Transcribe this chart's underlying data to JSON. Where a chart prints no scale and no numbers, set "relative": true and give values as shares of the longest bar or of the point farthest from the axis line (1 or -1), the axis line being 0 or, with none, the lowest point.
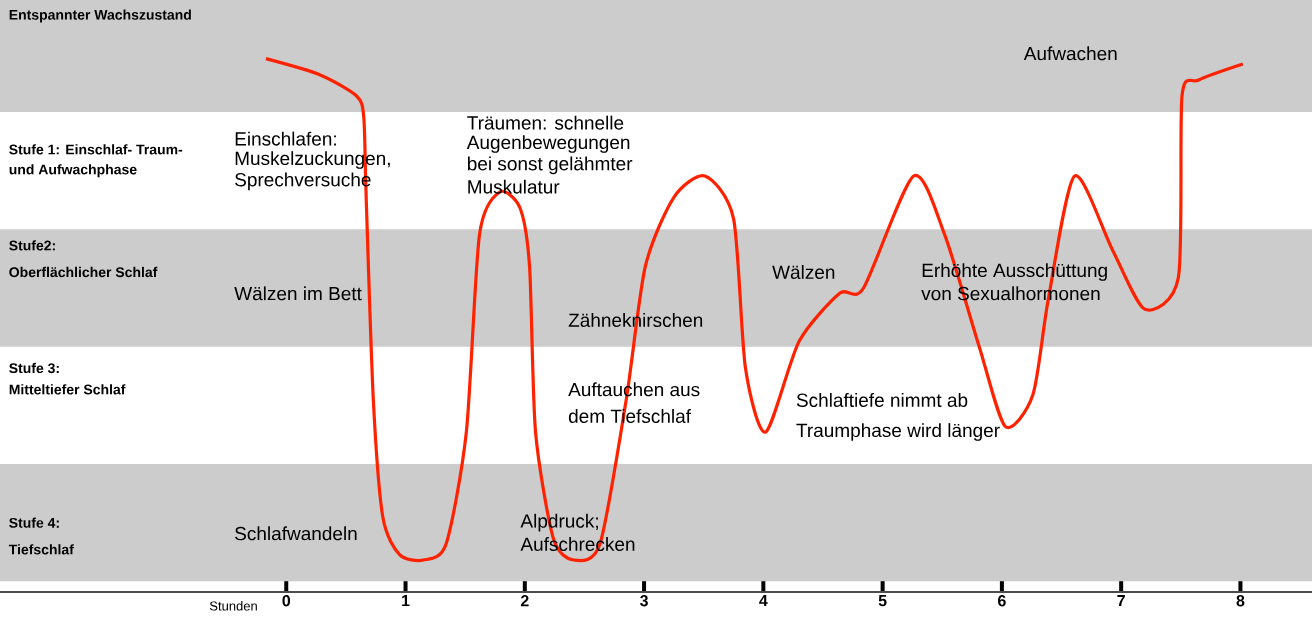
{
  "chart_data": {
    "type": "line",
    "relative": true,
    "xlabel": "Stunden",
    "xlim": [
      -2.4,
      8.6
    ],
    "xticks": [
      0,
      1,
      2,
      3,
      4,
      5,
      6,
      7,
      8
    ],
    "bands": [
      {
        "axis": "y",
        "from": 0.9,
        "to": 1.11,
        "color": "#cccccc"
      },
      {
        "axis": "y",
        "from": 0.46,
        "to": 0.68,
        "color": "#cccccc"
      },
      {
        "axis": "y",
        "from": 0.02,
        "to": 0.24,
        "color": "#cccccc"
      }
    ],
    "marker": "none",
    "line_style": "solid",
    "series": [
      {
        "color": "#ff2200",
        "x": [
          -0.17,
          0.28,
          0.59,
          0.65,
          0.67,
          0.73,
          0.81,
          0.95,
          1.15,
          1.34,
          1.51,
          1.62,
          1.79,
          1.96,
          2.04,
          2.09,
          2.24,
          2.41,
          2.63,
          2.85,
          3.01,
          3.25,
          3.51,
          3.75,
          3.85,
          4.02,
          4.3,
          4.64,
          4.84,
          5.26,
          5.52,
          5.81,
          6.03,
          6.26,
          6.39,
          6.61,
          6.93,
          7.2,
          7.48,
          7.51,
          7.65,
          8.02
        ],
        "values": [
          1.0,
          0.97,
          0.93,
          0.89,
          0.74,
          0.36,
          0.14,
          0.07,
          0.06,
          0.09,
          0.3,
          0.67,
          0.75,
          0.72,
          0.61,
          0.3,
          0.1,
          0.06,
          0.09,
          0.36,
          0.61,
          0.74,
          0.78,
          0.7,
          0.42,
          0.3,
          0.47,
          0.56,
          0.57,
          0.78,
          0.67,
          0.46,
          0.31,
          0.37,
          0.55,
          0.78,
          0.64,
          0.53,
          0.59,
          0.93,
          0.96,
          0.99
        ]
      }
    ],
    "annotations": [
      "Entspannter Wachszustand",
      "Stufe 1: Einschlaf- Traum-",
      "und Aufwachphase",
      "Stufe2:",
      "Oberflächlicher Schlaf",
      "Stufe 3:",
      "Mitteltiefer Schlaf",
      "Stufe 4:",
      "Tiefschlaf",
      "Einschlafen:",
      "Muskelzuckungen,",
      "Sprechversuche",
      "Träumen: schnelle",
      "Augenbewegungen",
      "bei sonst gelähmter",
      "Muskulatur",
      "Wälzen im Bett",
      "Zähneknirschen",
      "Auftauchen aus",
      "dem Tiefschlaf",
      "Schlafwandeln",
      "Alpdruck;",
      "Aufschrecken",
      "Aufwachen",
      "Wälzen",
      "Erhöhte Ausschüttung",
      "von Sexualhormonen",
      "Schlaftiefe nimmt ab",
      "Traumphase wird länger"
    ]
  }
}
